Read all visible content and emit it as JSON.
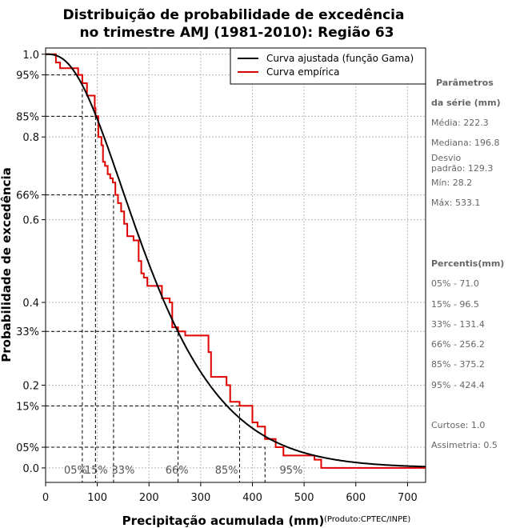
{
  "chart_data": {
    "type": "line",
    "title_line1": "Distribuição de probabilidade de excedência",
    "title_line2": "no trimestre AMJ (1981-2010): Região 63",
    "xlabel": "Precipitação acumulada (mm)",
    "ylabel": "Probabilidade de excedência",
    "credit": "(Produto:CPTEC/INPE)",
    "xlim": [
      0,
      735
    ],
    "ylim": [
      -0.035,
      1.015
    ],
    "x_ticks": [
      0,
      100,
      200,
      300,
      400,
      500,
      600,
      700
    ],
    "y_ticks": [
      {
        "value": 1.0,
        "label": "1.0"
      },
      {
        "value": 0.95,
        "label": "95%"
      },
      {
        "value": 0.85,
        "label": "85%"
      },
      {
        "value": 0.8,
        "label": "0.8"
      },
      {
        "value": 0.66,
        "label": "66%"
      },
      {
        "value": 0.6,
        "label": "0.6"
      },
      {
        "value": 0.4,
        "label": "0.4"
      },
      {
        "value": 0.33,
        "label": "33%"
      },
      {
        "value": 0.2,
        "label": "0.2"
      },
      {
        "value": 0.15,
        "label": "15%"
      },
      {
        "value": 0.05,
        "label": "05%"
      },
      {
        "value": 0.0,
        "label": "0.0"
      }
    ],
    "grid": true,
    "legend_position": "top-right",
    "series": [
      {
        "name": "Curva ajustada (função Gama)",
        "color": "#000000",
        "kind": "gamma_fit",
        "mean": 222.3,
        "sd": 129.3
      },
      {
        "name": "Curva empírica",
        "color": "#e00000",
        "kind": "step",
        "x": [
          0,
          20,
          28,
          55,
          63,
          71,
          80,
          95,
          96.5,
          102,
          108,
          111,
          115,
          120,
          125,
          130,
          135,
          140,
          146,
          152,
          155,
          158,
          165,
          170,
          180,
          185,
          190,
          196.8,
          210,
          225,
          240,
          245,
          250,
          256.2,
          265,
          270,
          305,
          315,
          320,
          340,
          350,
          357,
          375.2,
          390,
          400,
          410,
          424.4,
          435,
          445,
          450,
          460,
          500,
          512,
          520,
          533.1,
          735
        ],
        "y": [
          1.0,
          0.98,
          0.966,
          0.966,
          0.95,
          0.93,
          0.9,
          0.87,
          0.85,
          0.8,
          0.78,
          0.74,
          0.73,
          0.71,
          0.7,
          0.69,
          0.66,
          0.64,
          0.62,
          0.59,
          0.59,
          0.56,
          0.56,
          0.55,
          0.5,
          0.47,
          0.46,
          0.44,
          0.44,
          0.41,
          0.4,
          0.34,
          0.34,
          0.33,
          0.33,
          0.32,
          0.32,
          0.28,
          0.22,
          0.22,
          0.2,
          0.16,
          0.15,
          0.15,
          0.11,
          0.1,
          0.07,
          0.07,
          0.05,
          0.05,
          0.03,
          0.03,
          0.03,
          0.02,
          0.0,
          0.0
        ]
      }
    ],
    "percentile_markers": [
      {
        "label": "05%",
        "x": 71.0,
        "p": 0.95,
        "label_x": 58
      },
      {
        "label": "15%",
        "x": 96.5,
        "p": 0.85,
        "label_x": 98
      },
      {
        "label": "33%",
        "x": 131.4,
        "p": 0.66,
        "label_x": 150
      },
      {
        "label": "66%",
        "x": 256.2,
        "p": 0.33,
        "label_x": 254
      },
      {
        "label": "85%",
        "x": 375.2,
        "p": 0.15,
        "label_x": 350
      },
      {
        "label": "95%",
        "x": 424.4,
        "p": 0.05,
        "label_x": 475
      }
    ]
  },
  "side_panel": {
    "params_title_1": "Parâmetros",
    "params_title_2": "da série (mm)",
    "media": "Média: 222.3",
    "mediana": "Mediana: 196.8",
    "desvio_1": "Desvio",
    "desvio_2": "padrão: 129.3",
    "min": "Mín: 28.2",
    "max": "Máx: 533.1",
    "percentis_title": "Percentis(mm)",
    "p05": "05% - 71.0",
    "p15": "15% - 96.5",
    "p33": "33% - 131.4",
    "p66": "66% - 256.2",
    "p85": "85% - 375.2",
    "p95": "95% - 424.4",
    "curtose": "Curtose: 1.0",
    "assimetria": "Assimetria: 0.5"
  }
}
